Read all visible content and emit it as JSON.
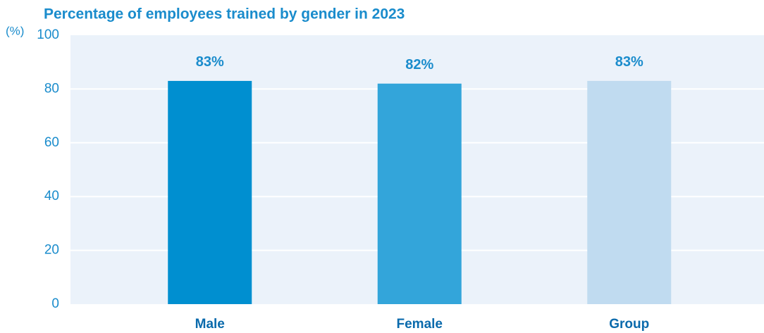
{
  "chart_data": {
    "type": "bar",
    "title": "Percentage of employees trained by gender in 2023",
    "y_unit": "(%)",
    "categories": [
      "Male",
      "Female",
      "Group"
    ],
    "values": [
      83,
      82,
      83
    ],
    "value_labels": [
      "83%",
      "82%",
      "83%"
    ],
    "colors": [
      "#008fd0",
      "#33a5da",
      "#c0dbf0"
    ],
    "ylim": [
      0,
      100
    ],
    "yticks": [
      0,
      20,
      40,
      60,
      80,
      100
    ],
    "grid": true
  }
}
